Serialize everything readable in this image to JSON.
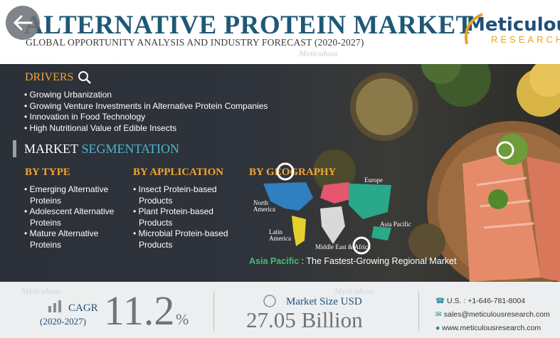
{
  "header": {
    "title": "ALTERNATIVE PROTEIN MARKET",
    "subtitle": "GLOBAL OPPORTUNITY ANALYSIS AND INDUSTRY FORECAST (2020-2027)",
    "logo": {
      "name": "Meticulous",
      "tagline": "RESEARCH"
    }
  },
  "watermark": "Meticulous",
  "drivers": {
    "heading": "DRIVERS",
    "items": [
      "Growing Urbanization",
      "Growing Venture Investments in Alternative Protein Companies",
      "Innovation in Food Technology",
      "High Nutritional Value of Edible Insects"
    ]
  },
  "segmentation": {
    "heading_1": "MARKET",
    "heading_2": "SEGMENTATION",
    "by_type": {
      "heading": "BY TYPE",
      "items": [
        "Emerging Alternative Proteins",
        "Adolescent Alternative Proteins",
        "Mature Alternative Proteins"
      ]
    },
    "by_application": {
      "heading": "BY APPLICATION",
      "items": [
        "Insect Protein-based Products",
        "Plant Protein-based Products",
        "Microbial Protein-based Products"
      ]
    }
  },
  "geography": {
    "heading": "BY GEOGRAPHY",
    "regions": [
      "Europe",
      "North America",
      "Latin America",
      "Middle East & Africa",
      "Asia Pacific"
    ],
    "highlight_region": "Asia Pacific",
    "highlight_text": " : The Fastest-Growing Regional Market"
  },
  "footer": {
    "cagr_label": "CAGR",
    "cagr_period": "(2020-2027)",
    "cagr_value": "11.2",
    "cagr_unit": "%",
    "market_size_label": "Market Size USD",
    "market_size_value": "27.05 Billion",
    "phone": "U.S. : +1-646-781-8004",
    "email": "sales@meticulousresearch.com",
    "website": "www.meticulousresearch.com"
  }
}
